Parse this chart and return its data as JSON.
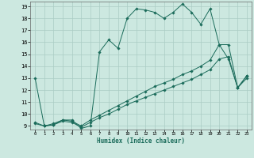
{
  "xlabel": "Humidex (Indice chaleur)",
  "bg_color": "#cce8e0",
  "grid_color": "#aaccc4",
  "line_color": "#1a6b5a",
  "xlim": [
    -0.5,
    23.5
  ],
  "ylim": [
    8.7,
    19.4
  ],
  "yticks": [
    9,
    10,
    11,
    12,
    13,
    14,
    15,
    16,
    17,
    18,
    19
  ],
  "xticks": [
    0,
    1,
    2,
    3,
    4,
    5,
    6,
    7,
    8,
    9,
    10,
    11,
    12,
    13,
    14,
    15,
    16,
    17,
    18,
    19,
    20,
    21,
    22,
    23
  ],
  "lines": [
    {
      "x": [
        0,
        1,
        2,
        3,
        4,
        5,
        6,
        7,
        8,
        9,
        10,
        11,
        12,
        13,
        14,
        15,
        16,
        17,
        18,
        19,
        20,
        21,
        22,
        23
      ],
      "y": [
        13,
        9,
        9.1,
        9.5,
        9.5,
        8.8,
        9.0,
        15.2,
        16.2,
        15.5,
        18.0,
        18.8,
        18.7,
        18.5,
        18.0,
        18.5,
        19.2,
        18.5,
        17.5,
        18.8,
        15.8,
        14.6,
        12.2,
        13.2
      ]
    },
    {
      "x": [
        0,
        1,
        2,
        3,
        4,
        5,
        6,
        7,
        8,
        9,
        10,
        11,
        12,
        13,
        14,
        15,
        16,
        17,
        18,
        19,
        20,
        21,
        22,
        23
      ],
      "y": [
        9.3,
        9.0,
        9.2,
        9.5,
        9.4,
        9.0,
        9.5,
        9.9,
        10.3,
        10.7,
        11.1,
        11.5,
        11.9,
        12.3,
        12.6,
        12.9,
        13.3,
        13.6,
        14.0,
        14.5,
        15.8,
        15.8,
        12.2,
        13.2
      ]
    },
    {
      "x": [
        0,
        1,
        2,
        3,
        4,
        5,
        6,
        7,
        8,
        9,
        10,
        11,
        12,
        13,
        14,
        15,
        16,
        17,
        18,
        19,
        20,
        21,
        22,
        23
      ],
      "y": [
        9.2,
        9.0,
        9.1,
        9.4,
        9.3,
        8.9,
        9.3,
        9.7,
        10.0,
        10.4,
        10.8,
        11.1,
        11.4,
        11.7,
        12.0,
        12.3,
        12.6,
        12.9,
        13.3,
        13.7,
        14.6,
        14.8,
        12.2,
        13.0
      ]
    }
  ]
}
